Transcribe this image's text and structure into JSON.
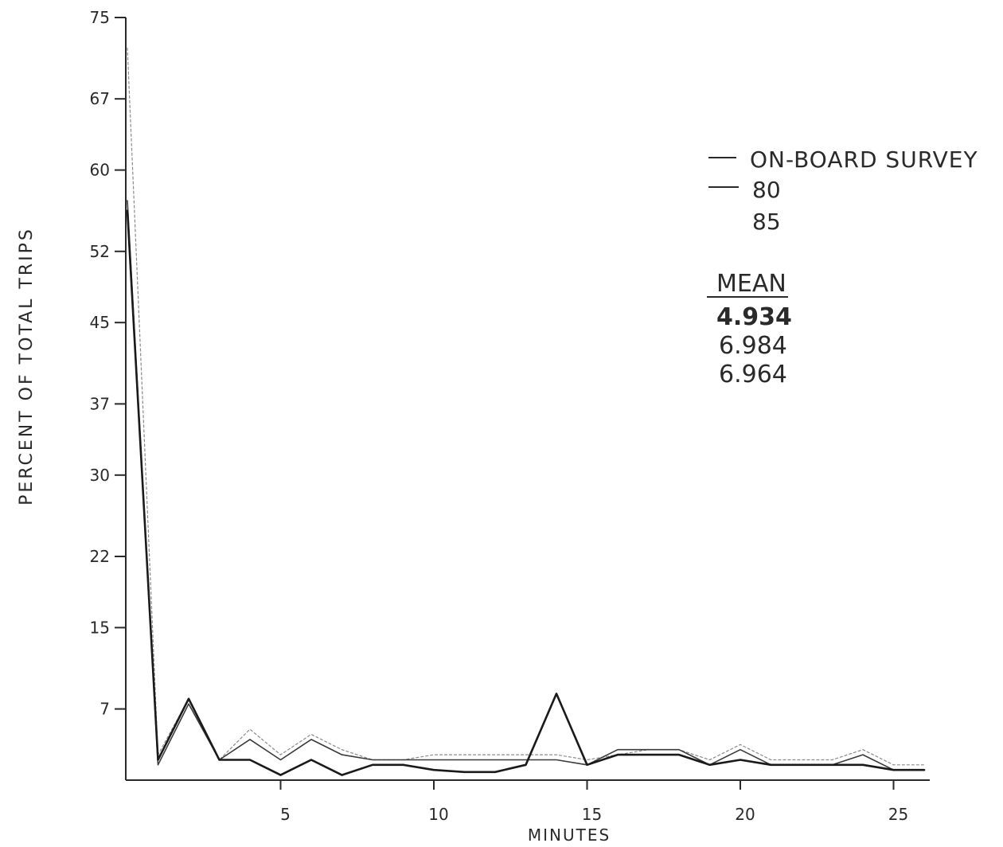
{
  "chart_data": {
    "type": "line",
    "title": "",
    "xlabel": "MINUTES",
    "ylabel": "PERCENT OF TOTAL TRIPS",
    "xlim": [
      0,
      26
    ],
    "ylim": [
      0,
      75
    ],
    "x_ticks": [
      5,
      10,
      15,
      20,
      25
    ],
    "x_tick_labels": [
      "5",
      "10",
      "15",
      "20",
      "25"
    ],
    "y_ticks": [
      7,
      15,
      22,
      30,
      37,
      45,
      52,
      60,
      67,
      75
    ],
    "y_tick_labels": [
      "7",
      "15",
      "22",
      "30",
      "37",
      "45",
      "52",
      "60",
      "67",
      "75"
    ],
    "grid": false,
    "legend_position": "right",
    "legend": {
      "labels": [
        "ON-BOARD SURVEY",
        "80",
        "85"
      ],
      "mean_header": "MEAN",
      "means": [
        "4.934",
        "6.984",
        "6.964"
      ]
    },
    "series": [
      {
        "name": "ON-BOARD SURVEY",
        "color": "#1a1a1a",
        "width": 2.6,
        "dash": "",
        "x": [
          0,
          1,
          2,
          3,
          4,
          5,
          6,
          7,
          8,
          9,
          10,
          11,
          12,
          13,
          14,
          15,
          16,
          17,
          18,
          19,
          20,
          21,
          22,
          23,
          24,
          25,
          26
        ],
        "y": [
          56,
          2,
          8,
          2,
          2,
          0.5,
          2,
          0.5,
          1.5,
          1.5,
          1,
          0.8,
          0.8,
          1.5,
          8.5,
          1.5,
          2.5,
          2.5,
          2.5,
          1.5,
          2,
          1.5,
          1.5,
          1.5,
          1.5,
          1,
          1
        ]
      },
      {
        "name": "80",
        "color": "#3a3a3a",
        "width": 1.6,
        "dash": "",
        "x": [
          0,
          1,
          2,
          3,
          4,
          5,
          6,
          7,
          8,
          9,
          10,
          11,
          12,
          13,
          14,
          15,
          16,
          17,
          18,
          19,
          20,
          21,
          22,
          23,
          24,
          25,
          26
        ],
        "y": [
          57,
          1.5,
          7.5,
          2,
          4,
          2,
          4,
          2.5,
          2,
          2,
          2,
          2,
          2,
          2,
          2,
          1.5,
          3,
          3,
          3,
          1.5,
          3,
          1.5,
          1.5,
          1.5,
          2.5,
          1,
          1
        ]
      },
      {
        "name": "85",
        "color": "#8a8a8a",
        "width": 1.2,
        "dash": "3,3",
        "x": [
          0,
          1,
          2,
          3,
          4,
          5,
          6,
          7,
          8,
          9,
          10,
          11,
          12,
          13,
          14,
          15,
          16,
          17,
          18,
          19,
          20,
          21,
          22,
          23,
          24,
          25,
          26
        ],
        "y": [
          72,
          2.5,
          8,
          2,
          5,
          2.5,
          4.5,
          3,
          2,
          2,
          2.5,
          2.5,
          2.5,
          2.5,
          2.5,
          2,
          2.5,
          3,
          3,
          2,
          3.5,
          2,
          2,
          2,
          3,
          1.5,
          1.5
        ]
      }
    ]
  }
}
